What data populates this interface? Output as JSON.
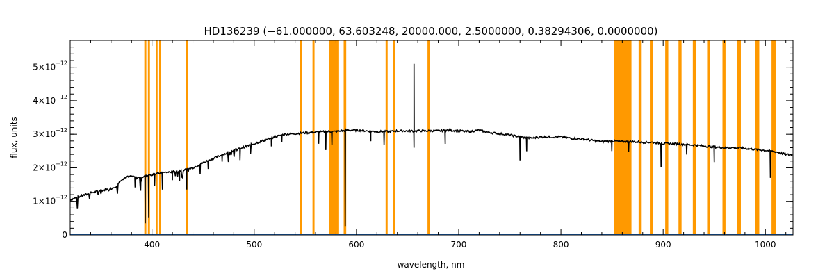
{
  "chart_data": {
    "type": "line",
    "title": "HD136239   (−61.000000, 63.603248, 20000.000, 2.5000000, 0.38294306, 0.0000000)",
    "xlabel": "wavelength, nm",
    "ylabel": "flux, units",
    "xlim": [
      320,
      1027
    ],
    "ylim": [
      0,
      5.8e-12
    ],
    "x_ticks": [
      400,
      500,
      600,
      700,
      800,
      900,
      1000
    ],
    "y_ticks": [
      {
        "value": 0,
        "mantissa": "0",
        "exponent": ""
      },
      {
        "value": 1e-12,
        "mantissa": "1×10",
        "exponent": "−12"
      },
      {
        "value": 2e-12,
        "mantissa": "2×10",
        "exponent": "−12"
      },
      {
        "value": 3e-12,
        "mantissa": "3×10",
        "exponent": "−12"
      },
      {
        "value": 4e-12,
        "mantissa": "4×10",
        "exponent": "−12"
      },
      {
        "value": 5e-12,
        "mantissa": "5×10",
        "exponent": "−12"
      }
    ],
    "grid": false,
    "line_color": "#000000",
    "band_color": "#ff9900",
    "baseline_color": "#1e73d8",
    "masked_bands": [
      [
        392.5,
        394.5
      ],
      [
        396.0,
        398.0
      ],
      [
        404.0,
        405.5
      ],
      [
        407.0,
        409.0
      ],
      [
        433.5,
        435.5
      ],
      [
        545.0,
        547.0
      ],
      [
        557.0,
        559.0
      ],
      [
        573.5,
        583.0
      ],
      [
        587.5,
        590.0
      ],
      [
        628.5,
        630.5
      ],
      [
        635.5,
        637.5
      ],
      [
        669.5,
        671.5
      ],
      [
        852.0,
        869.0
      ],
      [
        876.0,
        879.0
      ],
      [
        887.0,
        890.0
      ],
      [
        902.0,
        905.0
      ],
      [
        915.0,
        918.0
      ],
      [
        929.0,
        932.0
      ],
      [
        943.0,
        946.0
      ],
      [
        958.0,
        961.0
      ],
      [
        972.0,
        976.0
      ],
      [
        990.0,
        994.0
      ],
      [
        1006.0,
        1010.0
      ]
    ],
    "series": [
      {
        "x": [
          320,
          330,
          340,
          350,
          360,
          365,
          370,
          375,
          380,
          385,
          390,
          400,
          410,
          420,
          430,
          440,
          450,
          460,
          470,
          480,
          490,
          500,
          510,
          520,
          530,
          540,
          550,
          560,
          570,
          580,
          590,
          600,
          610,
          620,
          630,
          640,
          650,
          660,
          670,
          680,
          690,
          700,
          710,
          720,
          730,
          740,
          750,
          760,
          770,
          780,
          790,
          800,
          810,
          820,
          830,
          840,
          850,
          860,
          870,
          880,
          890,
          900,
          910,
          920,
          930,
          940,
          950,
          960,
          970,
          980,
          990,
          1000,
          1010,
          1020,
          1027
        ],
        "values": [
          1.05e-12,
          1.15e-12,
          1.25e-12,
          1.32e-12,
          1.38e-12,
          1.45e-12,
          1.65e-12,
          1.72e-12,
          1.75e-12,
          1.7e-12,
          1.72e-12,
          1.8e-12,
          1.85e-12,
          1.88e-12,
          1.92e-12,
          2e-12,
          2.15e-12,
          2.28e-12,
          2.4e-12,
          2.52e-12,
          2.62e-12,
          2.72e-12,
          2.82e-12,
          2.92e-12,
          3e-12,
          3.02e-12,
          3.04e-12,
          3.06e-12,
          3.08e-12,
          3.08e-12,
          3.12e-12,
          3.12e-12,
          3.1e-12,
          3.08e-12,
          3.08e-12,
          3.1e-12,
          3.1e-12,
          3.1e-12,
          3.1e-12,
          3.1e-12,
          3.12e-12,
          3.1e-12,
          3.08e-12,
          3.12e-12,
          3.05e-12,
          3.02e-12,
          2.98e-12,
          2.92e-12,
          2.88e-12,
          2.92e-12,
          2.92e-12,
          2.92e-12,
          2.88e-12,
          2.86e-12,
          2.82e-12,
          2.78e-12,
          2.8e-12,
          2.78e-12,
          2.78e-12,
          2.76e-12,
          2.76e-12,
          2.72e-12,
          2.72e-12,
          2.7e-12,
          2.68e-12,
          2.65e-12,
          2.62e-12,
          2.6e-12,
          2.6e-12,
          2.58e-12,
          2.55e-12,
          2.52e-12,
          2.48e-12,
          2.4e-12,
          2.38e-12
        ]
      }
    ],
    "absorption_lines": [
      {
        "x": 383.5,
        "depth": 3e-13
      },
      {
        "x": 388.9,
        "depth": 4e-13
      },
      {
        "x": 393.4,
        "depth": 1.4e-12
      },
      {
        "x": 396.8,
        "depth": 1.25e-12
      },
      {
        "x": 402.6,
        "depth": 3.5e-13
      },
      {
        "x": 410.2,
        "depth": 5e-13
      },
      {
        "x": 420.0,
        "depth": 2.5e-13
      },
      {
        "x": 427.0,
        "depth": 3e-13
      },
      {
        "x": 434.0,
        "depth": 6e-13
      },
      {
        "x": 447.1,
        "depth": 3e-13
      },
      {
        "x": 455.0,
        "depth": 2.5e-13
      },
      {
        "x": 468.6,
        "depth": 2e-13
      },
      {
        "x": 486.1,
        "depth": 3.5e-13
      },
      {
        "x": 516.8,
        "depth": 2.5e-13
      },
      {
        "x": 527.0,
        "depth": 2e-13
      },
      {
        "x": 563.0,
        "depth": 3.5e-13
      },
      {
        "x": 570.0,
        "depth": 5.5e-13
      },
      {
        "x": 576.0,
        "depth": 4e-13
      },
      {
        "x": 589.0,
        "depth": 2.85e-12
      },
      {
        "x": 614.0,
        "depth": 3e-13
      },
      {
        "x": 627.0,
        "depth": 4e-13
      },
      {
        "x": 656.3,
        "depth": 5e-13
      },
      {
        "x": 686.8,
        "depth": 4e-13
      },
      {
        "x": 760.0,
        "depth": 7e-13
      },
      {
        "x": 766.5,
        "depth": 4e-13
      },
      {
        "x": 849.8,
        "depth": 3e-13
      },
      {
        "x": 866.2,
        "depth": 3e-13
      },
      {
        "x": 898.0,
        "depth": 7e-13
      },
      {
        "x": 923.0,
        "depth": 3e-13
      },
      {
        "x": 950.0,
        "depth": 4.5e-13
      },
      {
        "x": 1004.9,
        "depth": 8e-13
      }
    ],
    "emission_lines": [
      {
        "x": 656.3,
        "height": 2e-12
      }
    ]
  }
}
